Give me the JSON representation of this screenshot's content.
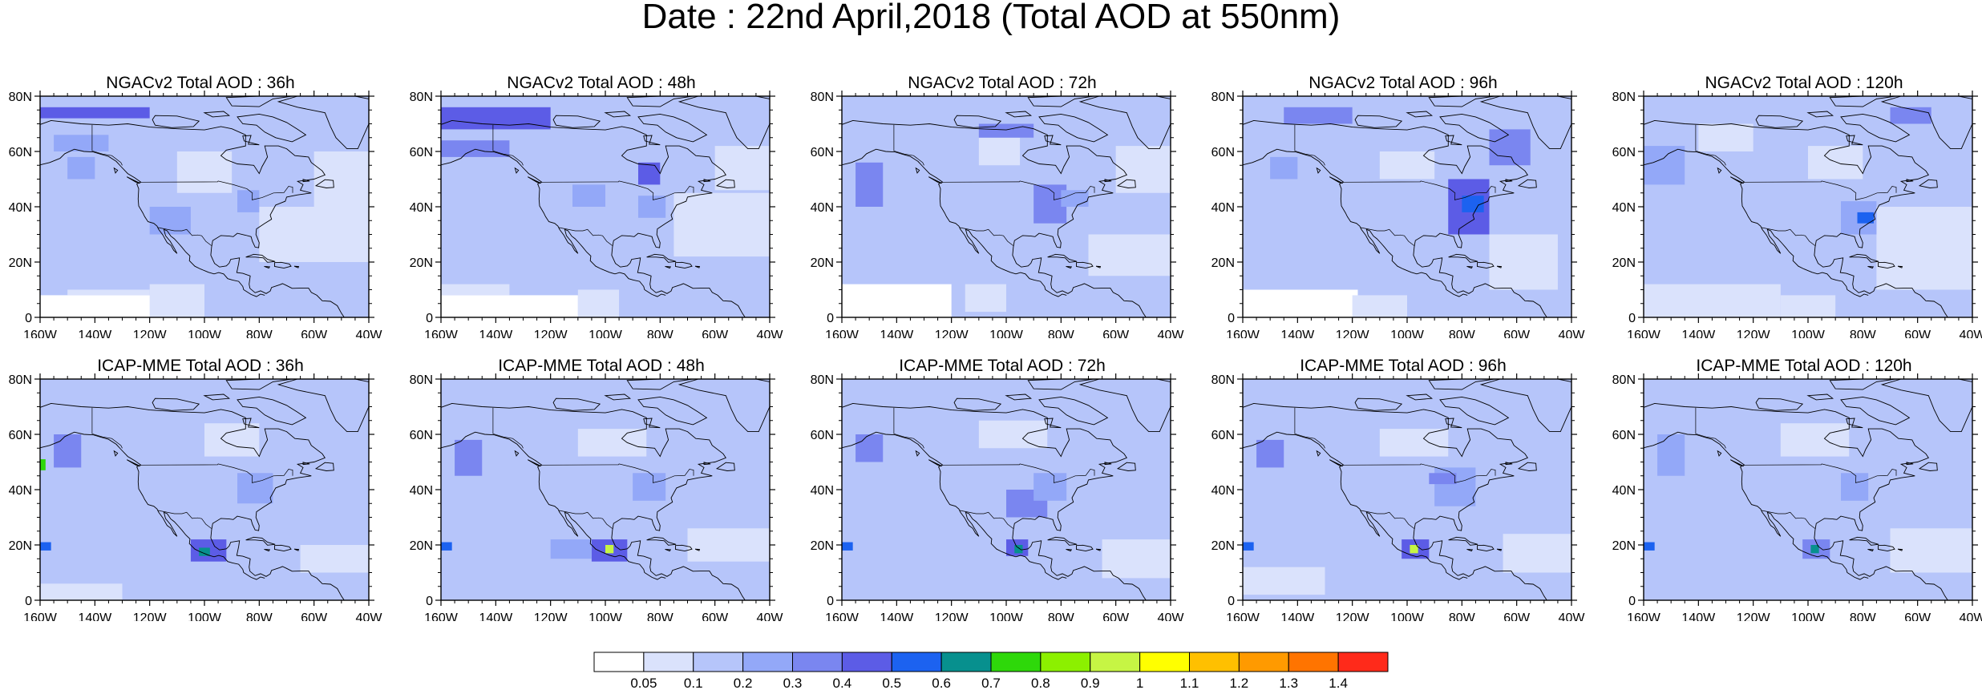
{
  "title": "Date : 22nd April,2018 (Total AOD at 550nm)",
  "panels": [
    {
      "title": "NGACv2 Total AOD : 36h",
      "model": "NGACv2",
      "lead": "36h"
    },
    {
      "title": "NGACv2 Total AOD : 48h",
      "model": "NGACv2",
      "lead": "48h"
    },
    {
      "title": "NGACv2 Total AOD : 72h",
      "model": "NGACv2",
      "lead": "72h"
    },
    {
      "title": "NGACv2 Total AOD : 96h",
      "model": "NGACv2",
      "lead": "96h"
    },
    {
      "title": "NGACv2 Total AOD : 120h",
      "model": "NGACv2",
      "lead": "120h"
    },
    {
      "title": "ICAP-MME Total AOD : 36h",
      "model": "ICAP-MME",
      "lead": "36h"
    },
    {
      "title": "ICAP-MME Total AOD : 48h",
      "model": "ICAP-MME",
      "lead": "48h"
    },
    {
      "title": "ICAP-MME Total AOD : 72h",
      "model": "ICAP-MME",
      "lead": "72h"
    },
    {
      "title": "ICAP-MME Total AOD : 96h",
      "model": "ICAP-MME",
      "lead": "96h"
    },
    {
      "title": "ICAP-MME Total AOD : 120h",
      "model": "ICAP-MME",
      "lead": "120h"
    }
  ],
  "lat_ticks": [
    "0",
    "20N",
    "40N",
    "60N",
    "80N"
  ],
  "lon_ticks": [
    "160W",
    "140W",
    "120W",
    "100W",
    "80W",
    "60W",
    "40W"
  ],
  "map_extent": {
    "lon": [
      -160,
      -40
    ],
    "lat": [
      0,
      80
    ]
  },
  "colorbar": {
    "labels": [
      "0.05",
      "0.1",
      "0.2",
      "0.3",
      "0.4",
      "0.5",
      "0.6",
      "0.7",
      "0.8",
      "0.9",
      "1",
      "1.1",
      "1.2",
      "1.3",
      "1.4"
    ],
    "colors": [
      "#ffffff",
      "#dae2fc",
      "#b6c5fa",
      "#93a8f8",
      "#7a86f0",
      "#5c5ce6",
      "#1c62f0",
      "#07908e",
      "#2ed80a",
      "#8cf000",
      "#c6f544",
      "#ffff00",
      "#ffc000",
      "#ff9a00",
      "#ff7400",
      "#ff2a1a"
    ]
  }
}
